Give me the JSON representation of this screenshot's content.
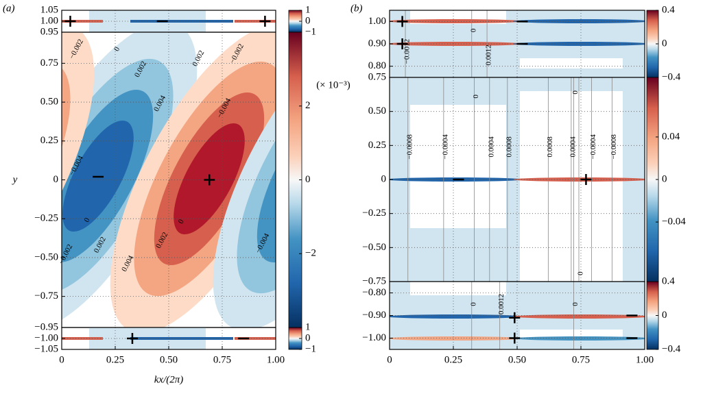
{
  "chart_data": [
    {
      "type": "contour",
      "panel_label": "(a)",
      "x_label": "kx/(2π)",
      "y_label": "y",
      "xlim": [
        0,
        1
      ],
      "xticks": [
        0,
        0.25,
        {
          "value": 0.5,
          "label": "0.50"
        },
        0.75,
        {
          "value": 1,
          "label": "1.00"
        }
      ],
      "subplots": [
        {
          "ylim": [
            0.95,
            1.05
          ],
          "yticks": [
            {
              "value": 1.05,
              "label": "1.05"
            },
            {
              "value": 1,
              "label": "1.00"
            },
            {
              "value": 0.95,
              "label": "0.95"
            }
          ],
          "markers": [
            {
              "symbol": "+",
              "x": 0.04,
              "y": 1
            },
            {
              "symbol": "−",
              "x": 0.47,
              "y": 1
            },
            {
              "symbol": "+",
              "x": 0.95,
              "y": 1
            }
          ],
          "contour_labels": [],
          "colorbar": {
            "ylim": [
              -1,
              1
            ],
            "ticks": [
              1,
              0,
              {
                "value": -1,
                "label": "−1"
              }
            ]
          }
        },
        {
          "ylim": [
            -0.95,
            0.95
          ],
          "yticks": [
            0.75,
            {
              "value": 0.5,
              "label": "0.50"
            },
            0.25,
            0,
            {
              "value": -0.25,
              "label": "−0.25"
            },
            {
              "value": -0.5,
              "label": "−0.50"
            },
            {
              "value": -0.75,
              "label": "−0.75"
            }
          ],
          "markers": [
            {
              "symbol": "−",
              "x": 0.17,
              "y": 0.02
            },
            {
              "symbol": "+",
              "x": 0.69,
              "y": 0
            }
          ],
          "contour_labels": [
            {
              "text": "−0.002",
              "x": 0.07,
              "y": 0.84
            },
            {
              "text": "0",
              "x": 0.26,
              "y": 0.84
            },
            {
              "text": "0.002",
              "x": 0.37,
              "y": 0.71
            },
            {
              "text": "0.002",
              "x": 0.64,
              "y": 0.78
            },
            {
              "text": "−0.002",
              "x": 0.82,
              "y": 0.81
            },
            {
              "text": "0.004",
              "x": 0.46,
              "y": 0.49
            },
            {
              "text": "−0.004",
              "x": 0.07,
              "y": 0.09
            },
            {
              "text": "−0.004",
              "x": 0.76,
              "y": 0.46
            },
            {
              "text": "0",
              "x": 0.12,
              "y": -0.26
            },
            {
              "text": "0.002",
              "x": 0.18,
              "y": -0.42
            },
            {
              "text": "−0.002",
              "x": 0.02,
              "y": -0.48
            },
            {
              "text": "0.004",
              "x": 0.31,
              "y": -0.54
            },
            {
              "text": "0.002",
              "x": 0.47,
              "y": -0.39
            },
            {
              "text": "0",
              "x": 0.56,
              "y": -0.27
            },
            {
              "text": "−0.004",
              "x": 0.94,
              "y": -0.41
            }
          ],
          "colorbar": {
            "ylim": [
              -4,
              4
            ],
            "ticks": [
              2,
              0,
              {
                "value": -2,
                "label": "−2"
              }
            ],
            "annotation": "(× 10⁻³)"
          }
        },
        {
          "ylim": [
            -1.05,
            -0.95
          ],
          "yticks": [
            {
              "value": -0.95,
              "label": "−0.95"
            },
            {
              "value": -1,
              "label": "−1.00"
            },
            {
              "value": -1.05,
              "label": "−1.05"
            }
          ],
          "markers": [
            {
              "symbol": "+",
              "x": 0.33,
              "y": -1
            },
            {
              "symbol": "−",
              "x": 0.85,
              "y": -1
            }
          ],
          "contour_labels": [],
          "colorbar": {
            "ylim": [
              -1,
              1
            ],
            "ticks": [
              1,
              0,
              {
                "value": -1,
                "label": "−1"
              }
            ]
          }
        }
      ]
    },
    {
      "type": "contour",
      "panel_label": "(b)",
      "xlim": [
        0,
        1
      ],
      "xticks": [
        0,
        0.25,
        {
          "value": 0.5,
          "label": "0.50"
        },
        0.75,
        {
          "value": 1,
          "label": "1.00"
        }
      ],
      "subplots": [
        {
          "ylim": [
            0.75,
            1.05
          ],
          "yticks": [
            {
              "value": 1,
              "label": "1.00"
            },
            {
              "value": 0.9,
              "label": "0.90"
            },
            {
              "value": 0.8,
              "label": "0.80"
            }
          ],
          "markers": [
            {
              "symbol": "+",
              "x": 0.05,
              "y": 1
            },
            {
              "symbol": "−",
              "x": 0.52,
              "y": 1
            },
            {
              "symbol": "+",
              "x": 0.05,
              "y": 0.9
            },
            {
              "symbol": "−",
              "x": 0.52,
              "y": 0.9
            }
          ],
          "contour_labels": [
            {
              "text": "−0.0012",
              "x": 0.07,
              "y": 0.866
            },
            {
              "text": "0.0012",
              "x": 0.39,
              "y": 0.85
            },
            {
              "text": "0",
              "x": 0.33,
              "y": 0.96
            }
          ],
          "colorbar": {
            "ylim": [
              -0.4,
              0.4
            ],
            "ticks": [
              0.4,
              0,
              {
                "value": -0.4,
                "label": "−0.4"
              }
            ]
          }
        },
        {
          "ylim": [
            -0.75,
            0.75
          ],
          "yticks": [
            0.75,
            {
              "value": 0.5,
              "label": "0.50"
            },
            0.25,
            0,
            {
              "value": -0.25,
              "label": "−0.25"
            },
            {
              "value": -0.5,
              "label": "−0.50"
            },
            {
              "value": -0.75,
              "label": "−0.75"
            }
          ],
          "markers": [
            {
              "symbol": "−",
              "x": 0.27,
              "y": 0
            },
            {
              "symbol": "+",
              "x": 0.77,
              "y": 0
            }
          ],
          "contour_labels": [
            {
              "text": "−0.0008",
              "x": 0.08,
              "y": 0.24
            },
            {
              "text": "−0.0004",
              "x": 0.22,
              "y": 0.24
            },
            {
              "text": "0.0004",
              "x": 0.4,
              "y": 0.24
            },
            {
              "text": "0.0008",
              "x": 0.47,
              "y": 0.24
            },
            {
              "text": "0.0008",
              "x": 0.63,
              "y": 0.24
            },
            {
              "text": "0.0004",
              "x": 0.72,
              "y": 0.24
            },
            {
              "text": "−0.0004",
              "x": 0.8,
              "y": 0.24
            },
            {
              "text": "−0.0008",
              "x": 0.88,
              "y": 0.24
            },
            {
              "text": "0",
              "x": 0.34,
              "y": 0.61
            },
            {
              "text": "0",
              "x": 0.73,
              "y": 0.64
            },
            {
              "text": "0",
              "x": 0.75,
              "y": -0.69
            }
          ],
          "colorbar": {
            "ylim": [
              -0.096,
              0.096
            ],
            "ticks": [
              0.04,
              0,
              {
                "value": -0.04,
                "label": "−0.04"
              }
            ]
          }
        },
        {
          "ylim": [
            -1.05,
            -0.75
          ],
          "yticks": [
            {
              "value": -0.8,
              "label": "−0.80"
            },
            {
              "value": -0.9,
              "label": "−0.90"
            },
            {
              "value": -1,
              "label": "−1.00"
            }
          ],
          "markers": [
            {
              "symbol": "+",
              "x": 0.49,
              "y": -0.91
            },
            {
              "symbol": "−",
              "x": 0.95,
              "y": -0.9
            },
            {
              "symbol": "+",
              "x": 0.49,
              "y": -1
            },
            {
              "symbol": "−",
              "x": 0.95,
              "y": -1
            }
          ],
          "contour_labels": [
            {
              "text": "0",
              "x": 0.33,
              "y": -0.85
            },
            {
              "text": "0.0012",
              "x": 0.44,
              "y": -0.85
            },
            {
              "text": "0",
              "x": 0.73,
              "y": -0.85
            }
          ],
          "colorbar": {
            "ylim": [
              -0.4,
              0.4
            ],
            "ticks": [
              0.4,
              0,
              {
                "value": -0.4,
                "label": "−0.4"
              }
            ]
          }
        }
      ]
    }
  ]
}
